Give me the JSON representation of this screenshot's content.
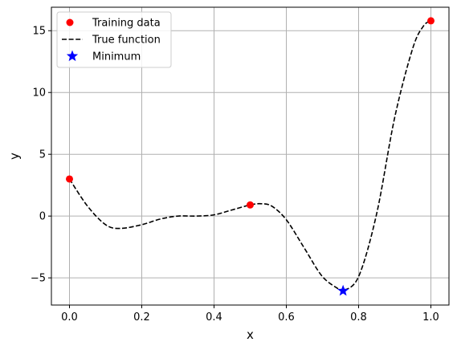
{
  "chart_data": {
    "type": "line",
    "xlabel": "x",
    "ylabel": "y",
    "xlim": [
      -0.05,
      1.05
    ],
    "ylim": [
      -7.2,
      16.9
    ],
    "xticks": [
      0.0,
      0.2,
      0.4,
      0.6,
      0.8,
      1.0
    ],
    "xtick_labels": [
      "0.0",
      "0.2",
      "0.4",
      "0.6",
      "0.8",
      "1.0"
    ],
    "yticks": [
      -5,
      0,
      5,
      10,
      15
    ],
    "ytick_labels": [
      "−5",
      "0",
      "5",
      "10",
      "15"
    ],
    "grid": true,
    "legend_position": "upper-left",
    "series": [
      {
        "name": "Training data",
        "kind": "scatter",
        "marker": "circle",
        "color": "#ff0000",
        "x": [
          0.0,
          0.5,
          1.0
        ],
        "y": [
          3.0,
          0.9,
          15.8
        ]
      },
      {
        "name": "True function",
        "kind": "line",
        "style": "dashed",
        "color": "#000000",
        "x": [
          0.0,
          0.05,
          0.1,
          0.14,
          0.2,
          0.25,
          0.3,
          0.35,
          0.4,
          0.45,
          0.5,
          0.53,
          0.56,
          0.6,
          0.65,
          0.7,
          0.75,
          0.757,
          0.8,
          0.85,
          0.9,
          0.95,
          0.98,
          1.0
        ],
        "y": [
          3.0,
          0.8,
          -0.7,
          -1.0,
          -0.7,
          -0.25,
          0.0,
          0.0,
          0.1,
          0.5,
          0.9,
          1.0,
          0.8,
          -0.3,
          -2.6,
          -4.9,
          -6.0,
          -6.05,
          -4.9,
          0.2,
          8.0,
          13.6,
          15.4,
          15.8
        ]
      },
      {
        "name": "Minimum",
        "kind": "scatter",
        "marker": "star",
        "color": "#0000ff",
        "x": [
          0.757
        ],
        "y": [
          -6.05
        ]
      }
    ]
  }
}
